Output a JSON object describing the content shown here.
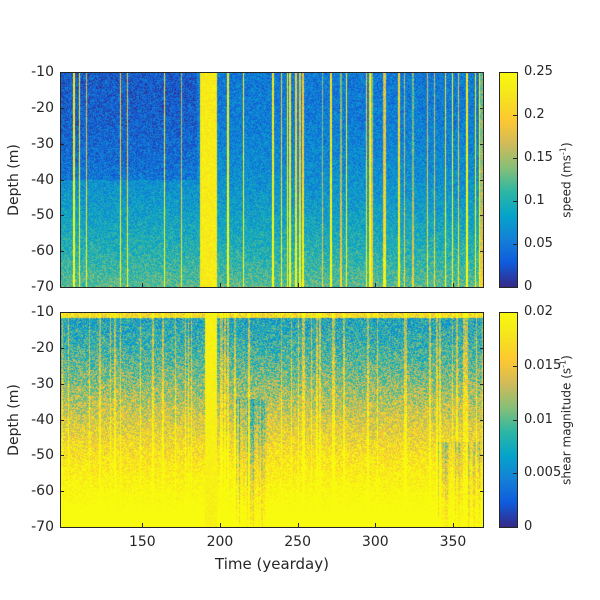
{
  "chart_data": [
    {
      "type": "heatmap",
      "panel": "top",
      "variable": "speed",
      "xlabel": "",
      "ylabel": "Depth (m)",
      "xlim": [
        97,
        370
      ],
      "ylim": [
        -70,
        -10
      ],
      "yticks": [
        "-10",
        "-20",
        "-30",
        "-40",
        "-50",
        "-60",
        "-70"
      ],
      "colormap": "parula",
      "clim": [
        0,
        0.25
      ],
      "colorbar_label": "speed (ms",
      "colorbar_label_sup": "-1",
      "colorbar_label_end": ")",
      "colorbar_ticks": [
        "0.25",
        "0.2",
        "0.15",
        "0.1",
        "0.05",
        "0"
      ],
      "high_value_bands_yearday": [
        [
          187,
          198
        ]
      ],
      "description_values": {
        "typical_upper": 0.06,
        "typical_lower": 0.12,
        "streak_max": 0.25
      }
    },
    {
      "type": "heatmap",
      "panel": "bottom",
      "variable": "shear magnitude",
      "xlabel": "Time (yearday)",
      "ylabel": "Depth (m)",
      "xlim": [
        97,
        370
      ],
      "ylim": [
        -70,
        -10
      ],
      "xticks": [
        "150",
        "200",
        "250",
        "300",
        "350"
      ],
      "yticks": [
        "-10",
        "-20",
        "-30",
        "-40",
        "-50",
        "-60",
        "-70"
      ],
      "colormap": "parula",
      "clim": [
        0,
        0.02
      ],
      "colorbar_label": "shear magnitude (s",
      "colorbar_label_sup": "-1",
      "colorbar_label_end": ")",
      "colorbar_ticks": [
        "0.02",
        "0.015",
        "0.01",
        "0.005",
        "0"
      ],
      "high_value_bands_yearday": [
        [
          190,
          198
        ]
      ],
      "description_values": {
        "typical_upper": 0.007,
        "typical_lower": 0.02
      }
    }
  ],
  "colors": {
    "parula": [
      "#352a87",
      "#0f5cdd",
      "#1481d6",
      "#06a4ca",
      "#2eb7a4",
      "#87bf77",
      "#d1bb59",
      "#fec832",
      "#f5e41d",
      "#f9fb0e"
    ]
  }
}
